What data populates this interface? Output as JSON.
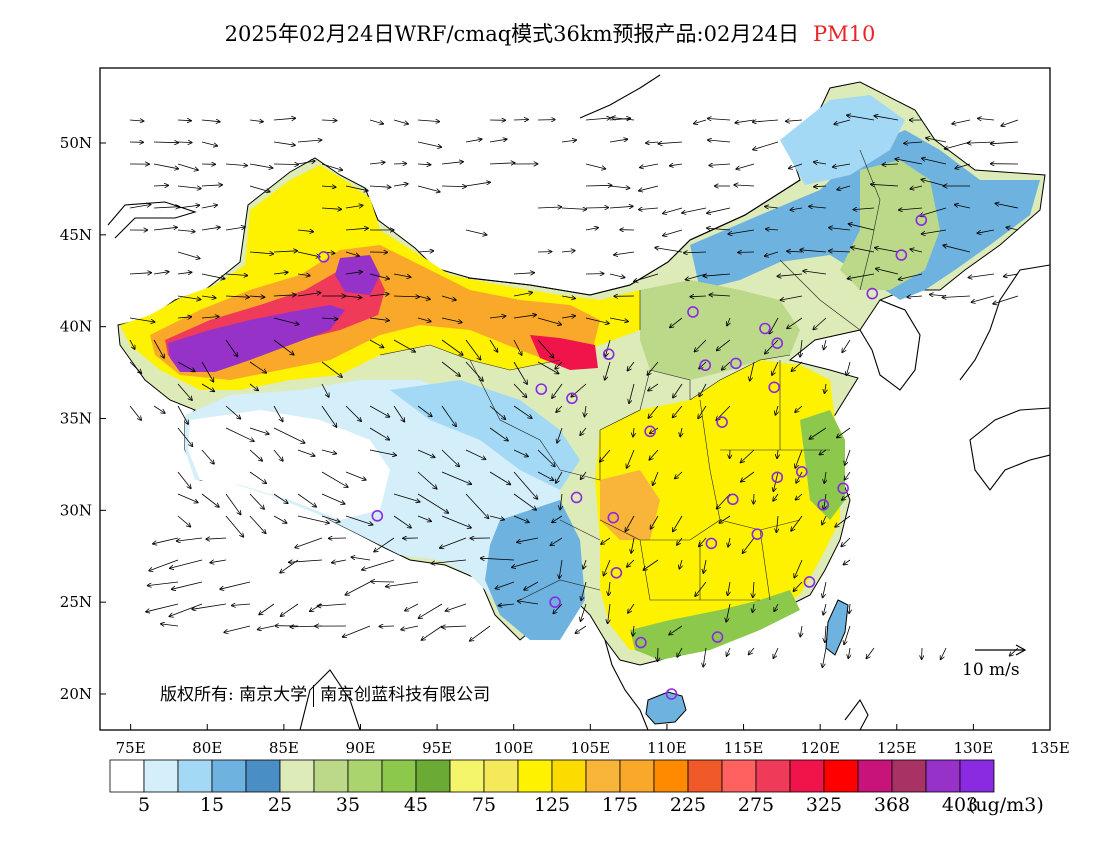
{
  "title": {
    "text": "2025年02月24日WRF/cmaq模式36km预报产品:02月24日",
    "pollutant": "PM10",
    "pollutant_color": "#e8232a"
  },
  "map": {
    "lon_ticks": [
      "75E",
      "80E",
      "85E",
      "90E",
      "95E",
      "100E",
      "105E",
      "110E",
      "115E",
      "120E",
      "125E",
      "130E",
      "135E"
    ],
    "lat_ticks": [
      "50N",
      "45N",
      "40N",
      "35N",
      "30N",
      "25N",
      "20N"
    ],
    "copyright": {
      "prefix": "版权所有:",
      "part1": "南京大学",
      "part2": "南京创蓝科技有限公司"
    },
    "wind_scale_label": "10 m/s"
  },
  "colorbar": {
    "unit": "(ug/m3)",
    "labels": [
      "5",
      "15",
      "25",
      "35",
      "45",
      "75",
      "125",
      "175",
      "225",
      "275",
      "325",
      "368",
      "403"
    ],
    "colors": [
      "#ffffff",
      "#d4eefa",
      "#a3d9f5",
      "#6eb3e0",
      "#4a8ec6",
      "#dcebb8",
      "#bcd98a",
      "#a9d46e",
      "#8cc84b",
      "#6aaa35",
      "#f4f56a",
      "#f5e85a",
      "#fff200",
      "#fcdc00",
      "#f9b43a",
      "#f9a82a",
      "#ff8a00",
      "#f05a28",
      "#ff6161",
      "#f03a5a",
      "#f0144a",
      "#ff0000",
      "#c8147a",
      "#a83264",
      "#9632c8",
      "#8a2be2"
    ]
  },
  "stations": [
    [
      87.6,
      43.8
    ],
    [
      91.1,
      29.7
    ],
    [
      101.8,
      36.6
    ],
    [
      103.8,
      36.1
    ],
    [
      106.2,
      38.5
    ],
    [
      108.9,
      34.3
    ],
    [
      104.1,
      30.7
    ],
    [
      106.5,
      29.6
    ],
    [
      102.7,
      25.0
    ],
    [
      106.7,
      26.6
    ],
    [
      108.3,
      22.8
    ],
    [
      110.3,
      20.0
    ],
    [
      113.3,
      23.1
    ],
    [
      112.9,
      28.2
    ],
    [
      114.3,
      30.6
    ],
    [
      115.9,
      28.7
    ],
    [
      117.2,
      31.8
    ],
    [
      118.8,
      32.1
    ],
    [
      120.2,
      30.3
    ],
    [
      121.5,
      31.2
    ],
    [
      119.3,
      26.1
    ],
    [
      113.6,
      34.8
    ],
    [
      117.0,
      36.7
    ],
    [
      114.5,
      38.0
    ],
    [
      112.5,
      37.9
    ],
    [
      111.7,
      40.8
    ],
    [
      116.4,
      39.9
    ],
    [
      117.2,
      39.1
    ],
    [
      123.4,
      41.8
    ],
    [
      125.3,
      43.9
    ],
    [
      126.6,
      45.8
    ]
  ]
}
